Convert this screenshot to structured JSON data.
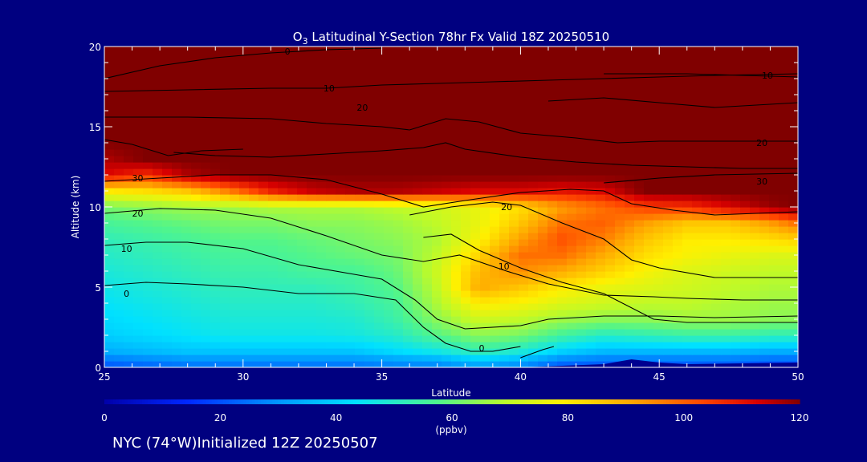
{
  "chart_data": {
    "type": "heatmap",
    "title": "O3 Latitudinal Y-Section 78hr  Fx Valid 18Z 20250510",
    "title_parts": {
      "pre": "O",
      "sub": "3",
      "post": " Latitudinal Y-Section 78hr  Fx Valid 18Z 20250510"
    },
    "xlabel": "Latitude",
    "ylabel": "Altitude (km)",
    "xlim": [
      25,
      50
    ],
    "ylim": [
      0,
      20
    ],
    "x_ticks": [
      25,
      30,
      35,
      40,
      45,
      50
    ],
    "y_ticks": [
      0,
      5,
      10,
      15,
      20
    ],
    "x_tick_labels": [
      "25",
      "30",
      "35",
      "40",
      "45",
      "50"
    ],
    "y_tick_labels": [
      "0",
      "5",
      "10",
      "15",
      "20"
    ],
    "grid": false,
    "lat": [
      25,
      26.5,
      28,
      29.5,
      31,
      32.5,
      34,
      35.5,
      37,
      38.5,
      40,
      41.5,
      43,
      44.5,
      46,
      47.5,
      49,
      50
    ],
    "alt": [
      0,
      0.5,
      1,
      2,
      3,
      4,
      5,
      6,
      7,
      8,
      9,
      10,
      11,
      12,
      13,
      14,
      16,
      18,
      20
    ],
    "values": [
      [
        20,
        22,
        24,
        24,
        24,
        24,
        24,
        26,
        26,
        30,
        26,
        20,
        20,
        20,
        20,
        20,
        18,
        18
      ],
      [
        26,
        28,
        30,
        30,
        30,
        30,
        30,
        32,
        34,
        40,
        36,
        28,
        26,
        26,
        26,
        26,
        24,
        24
      ],
      [
        34,
        36,
        38,
        38,
        38,
        38,
        38,
        42,
        46,
        52,
        48,
        40,
        36,
        36,
        36,
        36,
        34,
        34
      ],
      [
        40,
        42,
        44,
        46,
        46,
        46,
        47,
        50,
        58,
        64,
        62,
        55,
        50,
        52,
        54,
        54,
        52,
        52
      ],
      [
        42,
        44,
        46,
        48,
        48,
        48,
        49,
        54,
        64,
        72,
        70,
        66,
        64,
        64,
        66,
        66,
        64,
        64
      ],
      [
        44,
        46,
        48,
        50,
        50,
        50,
        52,
        56,
        68,
        80,
        78,
        74,
        72,
        70,
        70,
        68,
        66,
        66
      ],
      [
        46,
        48,
        50,
        52,
        52,
        52,
        54,
        58,
        70,
        90,
        86,
        80,
        76,
        74,
        72,
        70,
        68,
        68
      ],
      [
        48,
        50,
        52,
        54,
        54,
        56,
        56,
        60,
        72,
        88,
        94,
        90,
        84,
        78,
        74,
        72,
        70,
        70
      ],
      [
        50,
        52,
        54,
        56,
        56,
        58,
        60,
        62,
        70,
        84,
        98,
        98,
        90,
        82,
        78,
        76,
        74,
        74
      ],
      [
        52,
        54,
        56,
        58,
        58,
        60,
        62,
        64,
        68,
        78,
        92,
        102,
        96,
        86,
        80,
        80,
        82,
        84
      ],
      [
        56,
        58,
        60,
        62,
        62,
        64,
        64,
        66,
        70,
        76,
        86,
        98,
        100,
        92,
        86,
        86,
        92,
        98
      ],
      [
        62,
        64,
        66,
        66,
        68,
        68,
        68,
        70,
        72,
        76,
        82,
        92,
        98,
        104,
        106,
        112,
        118,
        120
      ],
      [
        80,
        82,
        86,
        96,
        108,
        114,
        116,
        116,
        114,
        112,
        112,
        110,
        112,
        120,
        120,
        120,
        120,
        120
      ],
      [
        112,
        106,
        116,
        120,
        120,
        120,
        120,
        120,
        120,
        120,
        120,
        120,
        120,
        120,
        120,
        120,
        120,
        120
      ],
      [
        116,
        120,
        120,
        120,
        120,
        120,
        120,
        120,
        120,
        120,
        120,
        120,
        120,
        120,
        120,
        120,
        120,
        120
      ],
      [
        120,
        120,
        120,
        120,
        120,
        120,
        120,
        120,
        120,
        120,
        120,
        120,
        120,
        120,
        120,
        120,
        120,
        120
      ],
      [
        120,
        120,
        120,
        120,
        120,
        120,
        120,
        120,
        120,
        120,
        120,
        120,
        120,
        120,
        120,
        120,
        120,
        120
      ],
      [
        120,
        120,
        120,
        120,
        120,
        120,
        120,
        120,
        120,
        120,
        120,
        120,
        120,
        120,
        120,
        120,
        120,
        120
      ],
      [
        120,
        120,
        120,
        120,
        120,
        120,
        120,
        120,
        120,
        120,
        120,
        120,
        120,
        120,
        120,
        120,
        120,
        120
      ]
    ],
    "terrain": [
      [
        25,
        0
      ],
      [
        40,
        0
      ],
      [
        43,
        0.2
      ],
      [
        44,
        0.5
      ],
      [
        45,
        0.3
      ],
      [
        46,
        0.2
      ],
      [
        50,
        0.3
      ]
    ],
    "contours": [
      {
        "label": "0",
        "label_at": [
          25.8,
          4.6
        ],
        "points": [
          [
            25,
            5.1
          ],
          [
            26.5,
            5.3
          ],
          [
            28,
            5.2
          ],
          [
            30,
            5.0
          ],
          [
            32,
            4.6
          ],
          [
            34,
            4.6
          ],
          [
            35.5,
            4.2
          ],
          [
            36.5,
            2.5
          ],
          [
            37.3,
            1.5
          ],
          [
            38.2,
            1.0
          ],
          [
            39,
            1.0
          ],
          [
            40,
            1.3
          ]
        ]
      },
      {
        "label": "0",
        "label_at": [
          38.6,
          1.2
        ],
        "points": [
          [
            40,
            0.6
          ],
          [
            40.8,
            1.1
          ],
          [
            41.2,
            1.3
          ]
        ]
      },
      {
        "label": "10",
        "label_at": [
          25.8,
          7.4
        ],
        "points": [
          [
            25,
            7.6
          ],
          [
            26.5,
            7.8
          ],
          [
            28,
            7.8
          ],
          [
            30,
            7.4
          ],
          [
            32,
            6.4
          ],
          [
            34,
            5.8
          ],
          [
            35,
            5.5
          ],
          [
            36.2,
            4.2
          ],
          [
            37,
            3.0
          ],
          [
            38,
            2.4
          ],
          [
            40,
            2.6
          ],
          [
            41,
            3.0
          ],
          [
            43,
            3.2
          ],
          [
            45,
            3.2
          ],
          [
            47,
            3.1
          ],
          [
            50,
            3.2
          ]
        ]
      },
      {
        "label": "20",
        "label_at": [
          26.2,
          9.6
        ],
        "points": [
          [
            25,
            9.6
          ],
          [
            27,
            9.9
          ],
          [
            29,
            9.8
          ],
          [
            31,
            9.3
          ],
          [
            33,
            8.2
          ],
          [
            35,
            7.0
          ],
          [
            36.5,
            6.6
          ],
          [
            37.8,
            7.0
          ],
          [
            39.5,
            6.0
          ],
          [
            41,
            5.2
          ],
          [
            43,
            4.5
          ],
          [
            44.8,
            4.4
          ],
          [
            46,
            4.3
          ],
          [
            48,
            4.2
          ],
          [
            50,
            4.2
          ]
        ]
      },
      {
        "label": "10",
        "label_at": [
          39.4,
          6.3
        ],
        "points": [
          [
            36.5,
            8.1
          ],
          [
            37.5,
            8.3
          ],
          [
            38.5,
            7.3
          ],
          [
            40,
            6.2
          ],
          [
            41.5,
            5.3
          ],
          [
            43,
            4.6
          ],
          [
            44.8,
            3.0
          ],
          [
            46,
            2.8
          ],
          [
            50,
            2.8
          ]
        ]
      },
      {
        "label": "20",
        "label_at": [
          39.5,
          10.0
        ],
        "points": [
          [
            36,
            9.5
          ],
          [
            37.5,
            10.0
          ],
          [
            39,
            10.3
          ],
          [
            40,
            10.1
          ],
          [
            41.5,
            9.0
          ],
          [
            43,
            8.0
          ],
          [
            44,
            6.7
          ],
          [
            45,
            6.2
          ],
          [
            47,
            5.6
          ],
          [
            50,
            5.6
          ]
        ]
      },
      {
        "label": "30",
        "label_at": [
          26.2,
          11.8
        ],
        "points": [
          [
            25,
            11.6
          ],
          [
            27,
            11.8
          ],
          [
            29,
            12.0
          ],
          [
            31,
            12.0
          ],
          [
            33,
            11.7
          ],
          [
            35,
            10.8
          ],
          [
            36.5,
            10.0
          ],
          [
            38,
            10.4
          ],
          [
            40,
            10.9
          ],
          [
            41.8,
            11.1
          ],
          [
            43,
            11.0
          ],
          [
            44,
            10.2
          ],
          [
            45.5,
            9.8
          ],
          [
            47,
            9.5
          ],
          [
            50,
            9.7
          ]
        ]
      },
      {
        "label": "30",
        "label_at": [
          48.7,
          11.6
        ],
        "points": [
          [
            43,
            11.5
          ],
          [
            45,
            11.8
          ],
          [
            47,
            12.0
          ],
          [
            50,
            12.1
          ]
        ]
      },
      {
        "label": "20",
        "label_at": [
          34.3,
          16.2
        ],
        "points": [
          [
            25,
            15.6
          ],
          [
            28,
            15.6
          ],
          [
            31,
            15.5
          ],
          [
            33,
            15.2
          ],
          [
            35,
            15.0
          ],
          [
            36,
            14.8
          ],
          [
            37.3,
            15.5
          ],
          [
            38.5,
            15.3
          ],
          [
            40,
            14.6
          ],
          [
            42,
            14.3
          ],
          [
            43.5,
            14.0
          ],
          [
            45,
            14.1
          ],
          [
            47,
            14.1
          ],
          [
            50,
            14.1
          ]
        ]
      },
      {
        "label": "20",
        "label_at": [
          48.7,
          14.0
        ],
        "points": [
          [
            41,
            16.6
          ],
          [
            43,
            16.8
          ],
          [
            45,
            16.5
          ],
          [
            47,
            16.2
          ],
          [
            50,
            16.5
          ]
        ]
      },
      {
        "label": "10",
        "label_at": [
          33.1,
          17.4
        ],
        "points": [
          [
            25,
            17.2
          ],
          [
            28,
            17.3
          ],
          [
            31,
            17.4
          ],
          [
            33,
            17.4
          ],
          [
            35,
            17.6
          ],
          [
            37,
            17.7
          ],
          [
            39,
            17.8
          ],
          [
            41,
            17.9
          ],
          [
            43,
            18.0
          ],
          [
            45,
            18.1
          ],
          [
            47,
            18.2
          ],
          [
            50,
            18.3
          ]
        ]
      },
      {
        "label": "10",
        "label_at": [
          48.9,
          18.2
        ],
        "points": [
          [
            43,
            18.3
          ],
          [
            46,
            18.3
          ],
          [
            48,
            18.2
          ],
          [
            50,
            18.1
          ]
        ]
      },
      {
        "label": "0",
        "label_at": [
          31.6,
          19.7
        ],
        "points": [
          [
            25,
            18.0
          ],
          [
            27,
            18.8
          ],
          [
            29,
            19.3
          ],
          [
            31,
            19.6
          ],
          [
            33,
            19.8
          ],
          [
            35,
            19.9
          ]
        ]
      },
      {
        "label": "",
        "label_at": null,
        "points": [
          [
            27.5,
            13.4
          ],
          [
            29,
            13.2
          ],
          [
            31,
            13.1
          ],
          [
            33,
            13.3
          ],
          [
            35,
            13.5
          ],
          [
            36.5,
            13.7
          ],
          [
            37.3,
            14.0
          ],
          [
            38,
            13.6
          ],
          [
            40,
            13.1
          ],
          [
            42,
            12.8
          ],
          [
            44,
            12.6
          ],
          [
            46,
            12.5
          ],
          [
            48,
            12.4
          ],
          [
            50,
            12.4
          ]
        ]
      },
      {
        "label": "",
        "label_at": null,
        "points": [
          [
            25,
            14.2
          ],
          [
            26,
            13.9
          ],
          [
            27.3,
            13.2
          ],
          [
            28.5,
            13.5
          ],
          [
            30,
            13.6
          ]
        ]
      }
    ],
    "colorbar": {
      "min": 0,
      "max": 120,
      "ticks": [
        0,
        20,
        40,
        60,
        80,
        100,
        120
      ],
      "tick_labels": [
        "0",
        "20",
        "40",
        "60",
        "80",
        "100",
        "120"
      ],
      "unit": "(ppbv)"
    },
    "colors": {
      "background": "#000080",
      "frame": "#ffffff",
      "contour": "#000000",
      "text": "#ffffff"
    }
  },
  "footer": {
    "text": "NYC (74°W)Initialized 12Z 20250507"
  }
}
